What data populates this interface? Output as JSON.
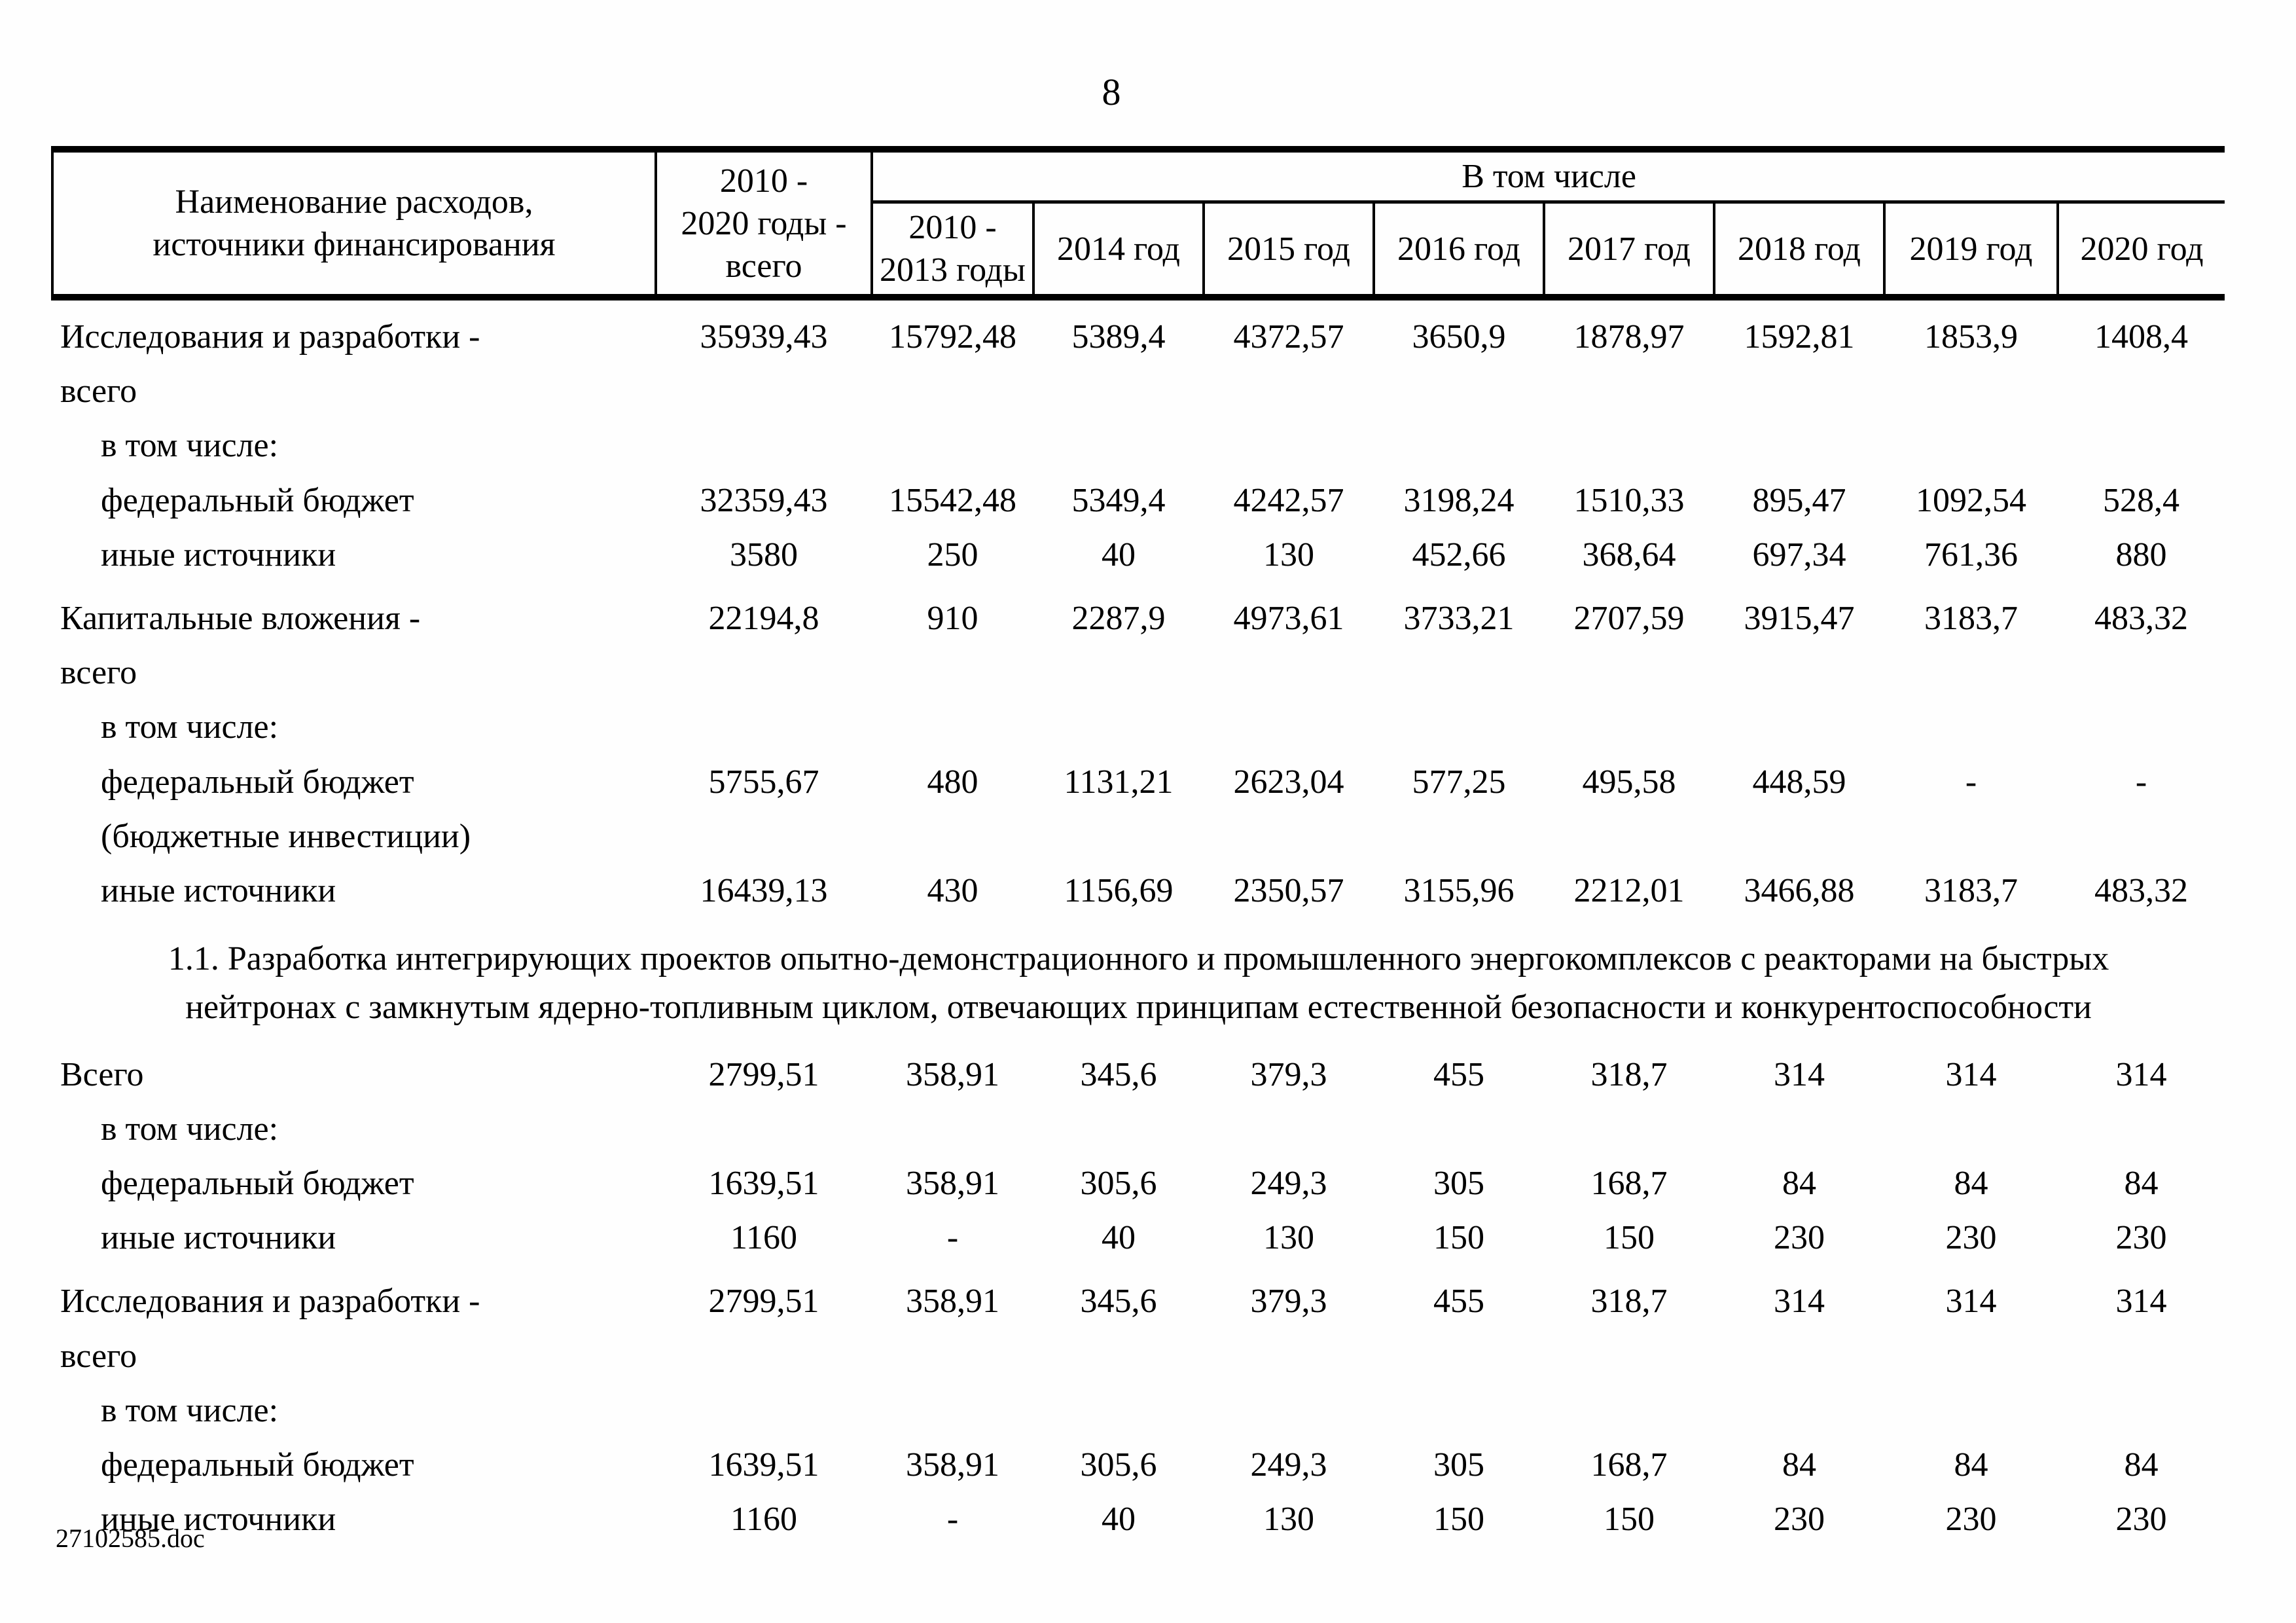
{
  "page": {
    "number": "8",
    "footer": "27102585.doc"
  },
  "table": {
    "header": {
      "name_col": "Наименование расходов,\nисточники финансирования",
      "total_col": "2010 -\n2020 годы -\nвсего",
      "group_col": "В том числе",
      "year_cols": [
        "2010 -\n2013 годы",
        "2014 год",
        "2015 год",
        "2016 год",
        "2017 год",
        "2018 год",
        "2019 год",
        "2020 год"
      ]
    },
    "rows": [
      {
        "type": "item",
        "name": "Исследования и разработки -\nвсего",
        "values": [
          "35939,43",
          "15792,48",
          "5389,4",
          "4372,57",
          "3650,9",
          "1878,97",
          "1592,81",
          "1853,9",
          "1408,4"
        ]
      },
      {
        "type": "subhead",
        "name": "в том числе:",
        "values": [
          "",
          "",
          "",
          "",
          "",
          "",
          "",
          "",
          ""
        ]
      },
      {
        "type": "sub",
        "name": "федеральный бюджет",
        "values": [
          "32359,43",
          "15542,48",
          "5349,4",
          "4242,57",
          "3198,24",
          "1510,33",
          "895,47",
          "1092,54",
          "528,4"
        ]
      },
      {
        "type": "sub",
        "name": "иные источники",
        "values": [
          "3580",
          "250",
          "40",
          "130",
          "452,66",
          "368,64",
          "697,34",
          "761,36",
          "880"
        ]
      },
      {
        "type": "item",
        "name": "Капитальные вложения -\nвсего",
        "values": [
          "22194,8",
          "910",
          "2287,9",
          "4973,61",
          "3733,21",
          "2707,59",
          "3915,47",
          "3183,7",
          "483,32"
        ]
      },
      {
        "type": "subhead",
        "name": "в том числе:",
        "values": [
          "",
          "",
          "",
          "",
          "",
          "",
          "",
          "",
          ""
        ]
      },
      {
        "type": "sub",
        "name": "федеральный бюджет\n(бюджетные инвестиции)",
        "values": [
          "5755,67",
          "480",
          "1131,21",
          "2623,04",
          "577,25",
          "495,58",
          "448,59",
          "-",
          "-"
        ]
      },
      {
        "type": "sub",
        "name": "иные источники",
        "values": [
          "16439,13",
          "430",
          "1156,69",
          "2350,57",
          "3155,96",
          "2212,01",
          "3466,88",
          "3183,7",
          "483,32"
        ]
      },
      {
        "type": "section",
        "name": "1.1. Разработка интегрирующих проектов опытно-демонстрационного и промышленного энергокомплексов с реакторами на быстрых\nнейтронах с замкнутым ядерно-топливным циклом, отвечающих принципам естественной безопасности и конкурентоспособности"
      },
      {
        "type": "item",
        "name": "Всего",
        "values": [
          "2799,51",
          "358,91",
          "345,6",
          "379,3",
          "455",
          "318,7",
          "314",
          "314",
          "314"
        ]
      },
      {
        "type": "subhead",
        "name": "в том числе:",
        "values": [
          "",
          "",
          "",
          "",
          "",
          "",
          "",
          "",
          ""
        ]
      },
      {
        "type": "sub",
        "name": "федеральный бюджет",
        "values": [
          "1639,51",
          "358,91",
          "305,6",
          "249,3",
          "305",
          "168,7",
          "84",
          "84",
          "84"
        ]
      },
      {
        "type": "sub",
        "name": "иные источники",
        "values": [
          "1160",
          "-",
          "40",
          "130",
          "150",
          "150",
          "230",
          "230",
          "230"
        ]
      },
      {
        "type": "item",
        "name": "Исследования и разработки -\nвсего",
        "values": [
          "2799,51",
          "358,91",
          "345,6",
          "379,3",
          "455",
          "318,7",
          "314",
          "314",
          "314"
        ]
      },
      {
        "type": "subhead",
        "name": "в том числе:",
        "values": [
          "",
          "",
          "",
          "",
          "",
          "",
          "",
          "",
          ""
        ]
      },
      {
        "type": "sub",
        "name": "федеральный бюджет",
        "values": [
          "1639,51",
          "358,91",
          "305,6",
          "249,3",
          "305",
          "168,7",
          "84",
          "84",
          "84"
        ]
      },
      {
        "type": "sub",
        "name": "иные источники",
        "values": [
          "1160",
          "-",
          "40",
          "130",
          "150",
          "150",
          "230",
          "230",
          "230"
        ]
      }
    ]
  }
}
